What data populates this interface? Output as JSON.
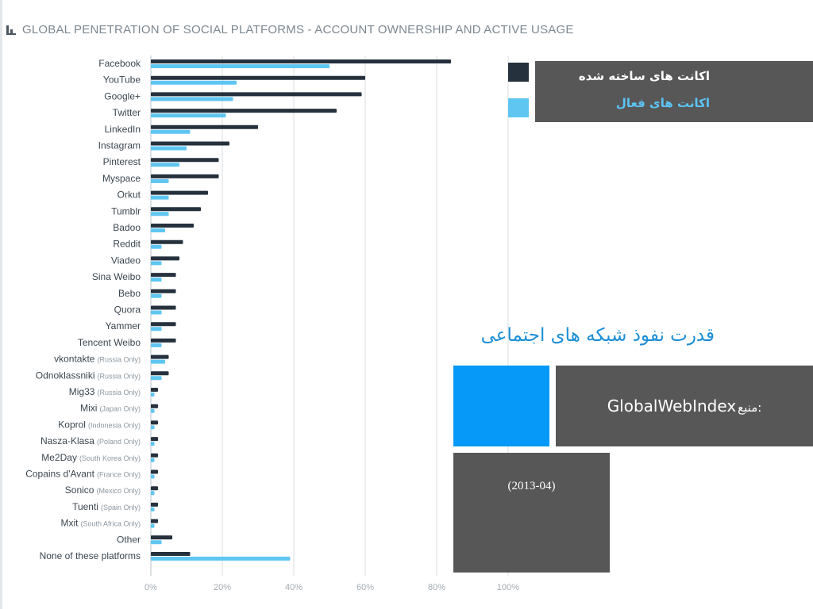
{
  "chart_data": {
    "type": "bar",
    "orientation": "horizontal",
    "title": "GLOBAL PENETRATION OF SOCIAL PLATFORMS - ACCOUNT OWNERSHIP AND ACTIVE USAGE",
    "categories": [
      {
        "name": "Facebook",
        "note": ""
      },
      {
        "name": "YouTube",
        "note": ""
      },
      {
        "name": "Google+",
        "note": ""
      },
      {
        "name": "Twitter",
        "note": ""
      },
      {
        "name": "LinkedIn",
        "note": ""
      },
      {
        "name": "Instagram",
        "note": ""
      },
      {
        "name": "Pinterest",
        "note": ""
      },
      {
        "name": "Myspace",
        "note": ""
      },
      {
        "name": "Orkut",
        "note": ""
      },
      {
        "name": "Tumblr",
        "note": ""
      },
      {
        "name": "Badoo",
        "note": ""
      },
      {
        "name": "Reddit",
        "note": ""
      },
      {
        "name": "Viadeo",
        "note": ""
      },
      {
        "name": "Sina Weibo",
        "note": ""
      },
      {
        "name": "Bebo",
        "note": ""
      },
      {
        "name": "Quora",
        "note": ""
      },
      {
        "name": "Yammer",
        "note": ""
      },
      {
        "name": "Tencent Weibo",
        "note": ""
      },
      {
        "name": "vkontakte",
        "note": "(Russia Only)"
      },
      {
        "name": "Odnoklassniki",
        "note": "(Russia Only)"
      },
      {
        "name": "Mig33",
        "note": "(Russia Only)"
      },
      {
        "name": "Mixi",
        "note": "(Japan Only)"
      },
      {
        "name": "Koprol",
        "note": "(Indonesia Only)"
      },
      {
        "name": "Nasza-Klasa",
        "note": "(Poland Only)"
      },
      {
        "name": "Me2Day",
        "note": "(South Korea Only)"
      },
      {
        "name": "Copains d'Avant",
        "note": "(France Only)"
      },
      {
        "name": "Sonico",
        "note": "(Mexico Only)"
      },
      {
        "name": "Tuenti",
        "note": "(Spain Only)"
      },
      {
        "name": "Mxit",
        "note": "(South Africa Only)"
      },
      {
        "name": "Other",
        "note": ""
      },
      {
        "name": "None of these platforms",
        "note": ""
      }
    ],
    "series": [
      {
        "name": "اکانت های ساخته شده",
        "color": "#25313d",
        "values": [
          84,
          60,
          59,
          52,
          30,
          22,
          19,
          19,
          16,
          14,
          12,
          9,
          8,
          7,
          7,
          7,
          7,
          7,
          5,
          5,
          2,
          2,
          2,
          2,
          2,
          2,
          2,
          2,
          2,
          6,
          11
        ]
      },
      {
        "name": "اکانت های فعال",
        "color": "#5ec6f0",
        "values": [
          50,
          24,
          23,
          21,
          11,
          10,
          8,
          5,
          5,
          5,
          4,
          3,
          3,
          3,
          3,
          3,
          3,
          3,
          4,
          3,
          1,
          1,
          1,
          1,
          1,
          1,
          1,
          1,
          1,
          3,
          39
        ]
      }
    ],
    "xlim": [
      0,
      100
    ],
    "xticks": [
      "0%",
      "20%",
      "40%",
      "60%",
      "80%",
      "100%"
    ],
    "grid": true,
    "legend_position": "top-right"
  },
  "legend": {
    "owned_label": "اکانت های ساخته شده",
    "active_label": "اکانت های فعال"
  },
  "slide": {
    "persian_title": "قدرت نفوذ  شبکه های اجتماعی",
    "source_label": "منبع:",
    "source_name": "GlobalWebIndex",
    "date": "(2013-04)"
  },
  "icons": {
    "title_icon": "bar-chart-icon"
  }
}
